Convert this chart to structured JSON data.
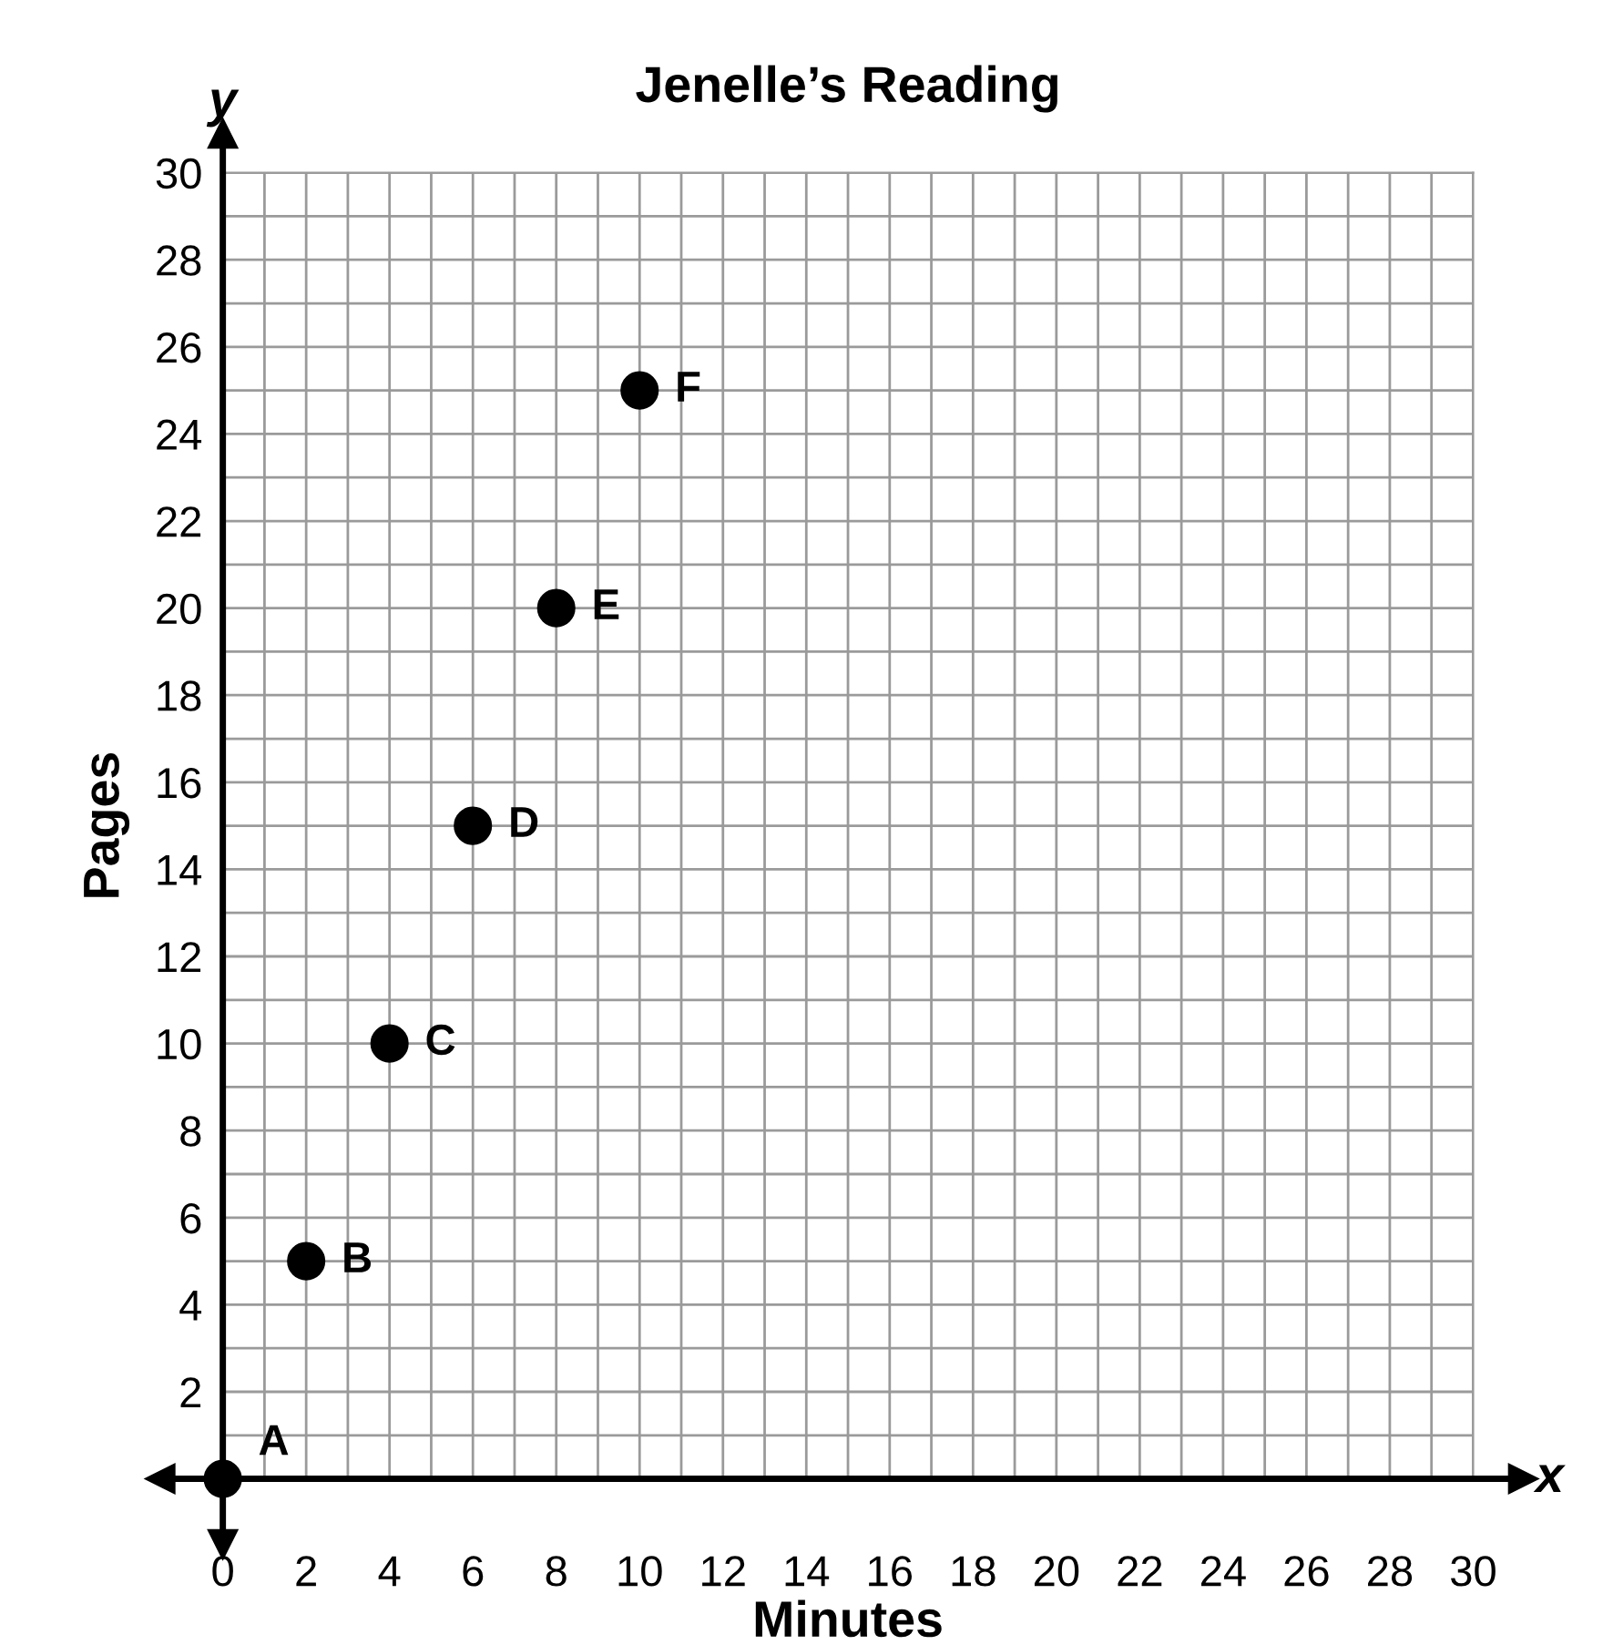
{
  "chart_data": {
    "type": "scatter",
    "title": "Jenelle’s Reading",
    "xlabel": "Minutes",
    "ylabel": "Pages",
    "x": [
      0,
      2,
      4,
      6,
      8,
      10
    ],
    "series": [
      {
        "color": "#000000",
        "values": [
          0,
          5,
          10,
          15,
          20,
          25
        ]
      }
    ],
    "marker": "circle",
    "annotations": [
      "x",
      "y",
      {
        "text": "A",
        "x": 0,
        "y": 0
      },
      {
        "text": "B",
        "x": 2,
        "y": 5
      },
      {
        "text": "C",
        "x": 4,
        "y": 10
      },
      {
        "text": "D",
        "x": 6,
        "y": 15
      },
      {
        "text": "E",
        "x": 8,
        "y": 20
      },
      {
        "text": "F",
        "x": 10,
        "y": 25
      }
    ],
    "xlim": [
      0,
      30
    ],
    "ylim": [
      0,
      30
    ],
    "xticks": [
      0,
      {
        "value": 1,
        "label": null
      },
      2,
      {
        "value": 3,
        "label": null
      },
      4,
      {
        "value": 5,
        "label": null
      },
      6,
      {
        "value": 7,
        "label": null
      },
      8,
      {
        "value": 9,
        "label": null
      },
      10,
      {
        "value": 11,
        "label": null
      },
      12,
      {
        "value": 13,
        "label": null
      },
      14,
      {
        "value": 15,
        "label": null
      },
      16,
      {
        "value": 17,
        "label": null
      },
      18,
      {
        "value": 19,
        "label": null
      },
      20,
      {
        "value": 21,
        "label": null
      },
      22,
      {
        "value": 23,
        "label": null
      },
      24,
      {
        "value": 25,
        "label": null
      },
      26,
      {
        "value": 27,
        "label": null
      },
      28,
      {
        "value": 29,
        "label": null
      },
      30
    ],
    "yticks": [
      {
        "value": 1,
        "label": null
      },
      2,
      {
        "value": 3,
        "label": null
      },
      4,
      {
        "value": 5,
        "label": null
      },
      6,
      {
        "value": 7,
        "label": null
      },
      8,
      {
        "value": 9,
        "label": null
      },
      10,
      {
        "value": 11,
        "label": null
      },
      12,
      {
        "value": 13,
        "label": null
      },
      14,
      {
        "value": 15,
        "label": null
      },
      16,
      {
        "value": 17,
        "label": null
      },
      18,
      {
        "value": 19,
        "label": null
      },
      20,
      {
        "value": 21,
        "label": null
      },
      22,
      {
        "value": 23,
        "label": null
      },
      24,
      {
        "value": 25,
        "label": null
      },
      26,
      {
        "value": 27,
        "label": null
      },
      28,
      {
        "value": 29,
        "label": null
      },
      30
    ],
    "grid": true,
    "legend": false
  }
}
